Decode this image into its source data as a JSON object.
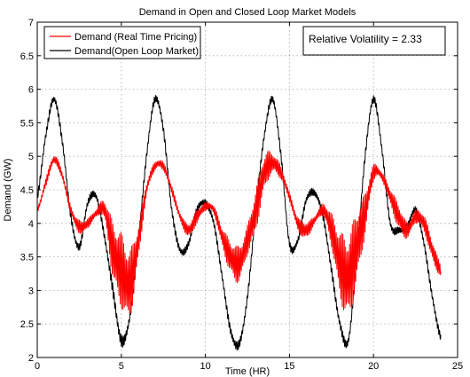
{
  "chart_data": {
    "type": "line",
    "title": "Demand in Open and Closed Loop Market Models",
    "xlabel": "Time (HR)",
    "ylabel": "Demand (GW)",
    "xlim": [
      0,
      25
    ],
    "ylim": [
      2,
      7
    ],
    "x_ticks": [
      "0",
      "5",
      "10",
      "15",
      "20",
      "25"
    ],
    "y_ticks": [
      "2",
      "2.5",
      "3",
      "3.5",
      "4",
      "4.5",
      "5",
      "5.5",
      "6",
      "6.5",
      "7"
    ],
    "grid": true,
    "legend_position": "top-left",
    "annotation": "Relative Volatility = 2.33",
    "series": [
      {
        "name": "Demand (Real Time Pricing)",
        "color": "#ff0000",
        "x": [
          0,
          0.5,
          1,
          1.5,
          2,
          2.5,
          3,
          3.5,
          4,
          4.5,
          5,
          5.5,
          6,
          6.5,
          7,
          7.5,
          8,
          8.5,
          9,
          9.5,
          10,
          10.5,
          11,
          11.5,
          12,
          12.5,
          13,
          13.5,
          14,
          14.5,
          15,
          15.5,
          16,
          16.5,
          17,
          17.5,
          18,
          18.5,
          19,
          19.5,
          20,
          20.5,
          21,
          21.5,
          22,
          22.5,
          23,
          23.5,
          24
        ],
        "y": [
          4.2,
          4.6,
          4.95,
          4.7,
          4.2,
          3.95,
          4.0,
          4.15,
          4.2,
          3.6,
          3.3,
          3.1,
          3.7,
          4.5,
          4.85,
          4.85,
          4.5,
          4.1,
          3.9,
          4.1,
          4.25,
          4.2,
          3.8,
          3.5,
          3.4,
          3.75,
          4.2,
          4.75,
          4.9,
          4.75,
          4.4,
          4.0,
          3.9,
          4.05,
          4.2,
          3.9,
          3.4,
          3.2,
          3.65,
          4.15,
          4.75,
          4.7,
          4.4,
          4.1,
          3.9,
          4.1,
          4.0,
          3.6,
          3.3
        ],
        "oscillation_amplitude": [
          0.03,
          0.05,
          0.05,
          0.05,
          0.05,
          0.08,
          0.06,
          0.05,
          0.12,
          0.35,
          0.45,
          0.42,
          0.22,
          0.08,
          0.05,
          0.05,
          0.05,
          0.05,
          0.08,
          0.08,
          0.05,
          0.05,
          0.12,
          0.2,
          0.22,
          0.18,
          0.25,
          0.22,
          0.12,
          0.08,
          0.05,
          0.08,
          0.1,
          0.05,
          0.08,
          0.2,
          0.4,
          0.5,
          0.45,
          0.25,
          0.1,
          0.05,
          0.1,
          0.15,
          0.1,
          0.08,
          0.1,
          0.12,
          0.08
        ]
      },
      {
        "name": "Demand(Open Loop Market)",
        "color": "#000000",
        "x": [
          0,
          0.5,
          1,
          1.5,
          2,
          2.5,
          3,
          3.5,
          4,
          4.5,
          5,
          5.5,
          6,
          6.5,
          7,
          7.5,
          8,
          8.5,
          9,
          9.5,
          10,
          10.5,
          11,
          11.5,
          12,
          12.5,
          13,
          13.5,
          14,
          14.5,
          15,
          15.5,
          16,
          16.5,
          17,
          17.5,
          18,
          18.5,
          19,
          19.5,
          20,
          20.5,
          21,
          21.5,
          22,
          22.5,
          23,
          23.5,
          24
        ],
        "y": [
          4.4,
          5.3,
          5.85,
          5.2,
          4.1,
          3.65,
          4.3,
          4.4,
          3.8,
          3.0,
          2.25,
          2.6,
          3.7,
          5.0,
          5.85,
          5.4,
          4.2,
          3.6,
          3.7,
          4.2,
          4.3,
          4.0,
          3.2,
          2.4,
          2.2,
          2.9,
          4.2,
          5.3,
          5.85,
          5.0,
          3.7,
          3.75,
          4.35,
          4.45,
          4.1,
          3.3,
          2.5,
          2.25,
          3.5,
          5.0,
          5.85,
          5.1,
          4.0,
          3.9,
          3.95,
          4.2,
          3.7,
          2.9,
          2.3
        ],
        "oscillation_amplitude": [
          0.05,
          0.05,
          0.05,
          0.05,
          0.05,
          0.05,
          0.05,
          0.05,
          0.05,
          0.08,
          0.08,
          0.06,
          0.05,
          0.05,
          0.05,
          0.05,
          0.05,
          0.05,
          0.05,
          0.05,
          0.05,
          0.05,
          0.05,
          0.06,
          0.06,
          0.05,
          0.05,
          0.05,
          0.05,
          0.05,
          0.05,
          0.05,
          0.05,
          0.05,
          0.05,
          0.06,
          0.06,
          0.06,
          0.05,
          0.05,
          0.05,
          0.05,
          0.05,
          0.05,
          0.05,
          0.05,
          0.05,
          0.05,
          0.05
        ]
      }
    ]
  }
}
